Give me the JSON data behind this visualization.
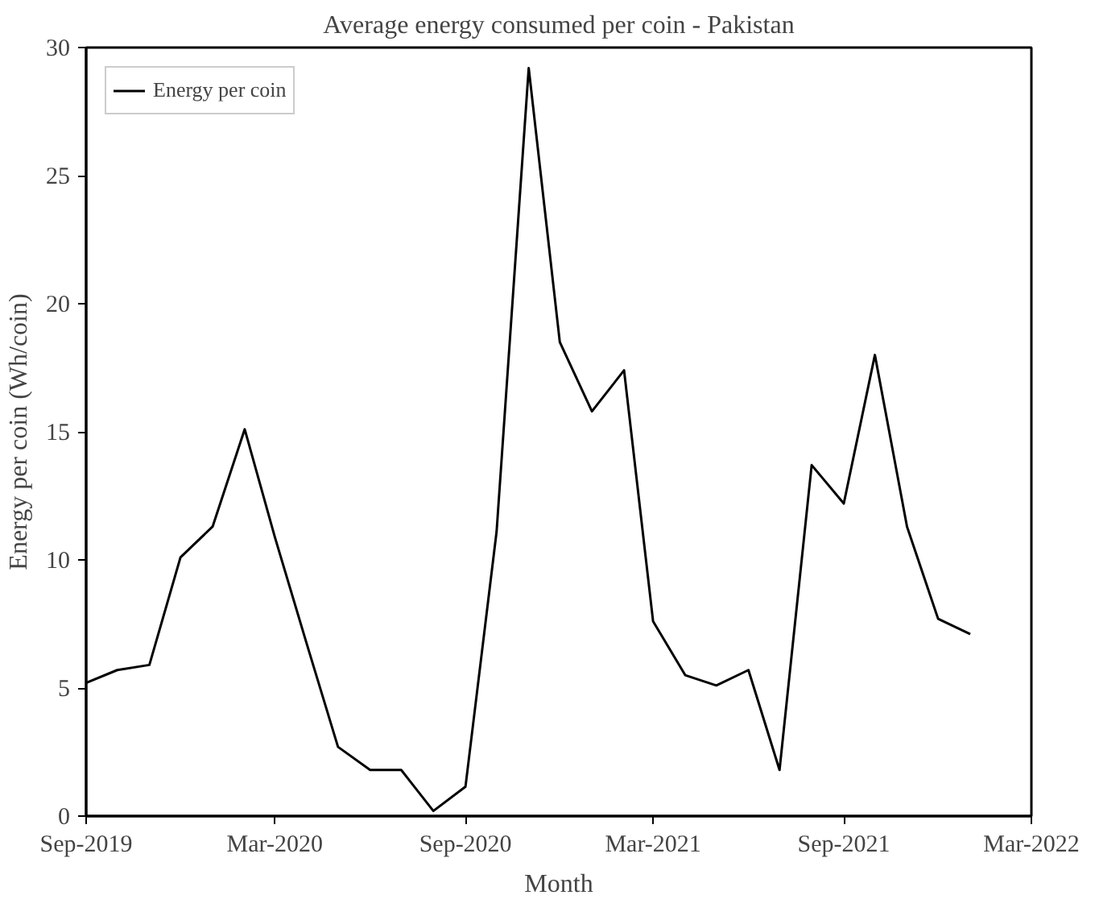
{
  "chart_data": {
    "type": "line",
    "title": "Average energy consumed per coin - Pakistan",
    "xlabel": "Month",
    "ylabel": "Energy per coin (Wh/coin)",
    "x": [
      "2019-09",
      "2019-10",
      "2019-11",
      "2019-12",
      "2020-01",
      "2020-02",
      "2020-03",
      "2020-04",
      "2020-05",
      "2020-06",
      "2020-07",
      "2020-08",
      "2020-09",
      "2020-10",
      "2020-11",
      "2020-12",
      "2021-01",
      "2021-02",
      "2021-03",
      "2021-04",
      "2021-05",
      "2021-06",
      "2021-07",
      "2021-08",
      "2021-09",
      "2021-10",
      "2021-11",
      "2021-12",
      "2022-01"
    ],
    "series": [
      {
        "name": "Energy per coin",
        "color": "#000000",
        "values": [
          5.2,
          5.7,
          5.9,
          10.1,
          11.3,
          15.1,
          10.9,
          6.7,
          2.7,
          1.8,
          1.8,
          0.2,
          1.15,
          11.1,
          29.2,
          18.5,
          15.8,
          17.4,
          7.6,
          5.5,
          5.1,
          5.7,
          1.8,
          13.7,
          12.2,
          18.0,
          11.3,
          7.7,
          7.1
        ]
      }
    ],
    "xlim": [
      "2019-09",
      "2022-03"
    ],
    "xticks": [
      {
        "value": "2019-09",
        "label": "Sep-2019"
      },
      {
        "value": "2020-03",
        "label": "Mar-2020"
      },
      {
        "value": "2020-09",
        "label": "Sep-2020"
      },
      {
        "value": "2021-03",
        "label": "Mar-2021"
      },
      {
        "value": "2021-09",
        "label": "Sep-2021"
      },
      {
        "value": "2022-03",
        "label": "Mar-2022"
      }
    ],
    "ylim": [
      0,
      30
    ],
    "yticks": [
      0,
      5,
      10,
      15,
      20,
      25,
      30
    ],
    "grid": false,
    "legend": "top left",
    "marker": "none",
    "line_style": "solid"
  }
}
